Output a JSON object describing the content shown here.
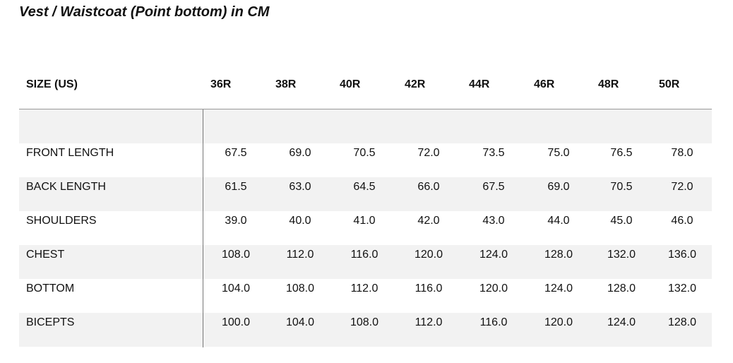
{
  "title": "Vest / Waistcoat (Point bottom) in CM",
  "table": {
    "header": [
      "SIZE (US)",
      "36R",
      "38R",
      "40R",
      "42R",
      "44R",
      "46R",
      "48R",
      "50R"
    ],
    "rows": [
      [
        "FRONT LENGTH",
        "67.5",
        "69.0",
        "70.5",
        "72.0",
        "73.5",
        "75.0",
        "76.5",
        "78.0"
      ],
      [
        "BACK LENGTH",
        "61.5",
        "63.0",
        "64.5",
        "66.0",
        "67.5",
        "69.0",
        "70.5",
        "72.0"
      ],
      [
        "SHOULDERS",
        "39.0",
        "40.0",
        "41.0",
        "42.0",
        "43.0",
        "44.0",
        "45.0",
        "46.0"
      ],
      [
        "CHEST",
        "108.0",
        "112.0",
        "116.0",
        "120.0",
        "124.0",
        "128.0",
        "132.0",
        "136.0"
      ],
      [
        "BOTTOM",
        "104.0",
        "108.0",
        "112.0",
        "116.0",
        "120.0",
        "124.0",
        "128.0",
        "132.0"
      ],
      [
        "BICEPTS",
        "100.0",
        "104.0",
        "108.0",
        "112.0",
        "116.0",
        "120.0",
        "124.0",
        "128.0"
      ]
    ]
  }
}
